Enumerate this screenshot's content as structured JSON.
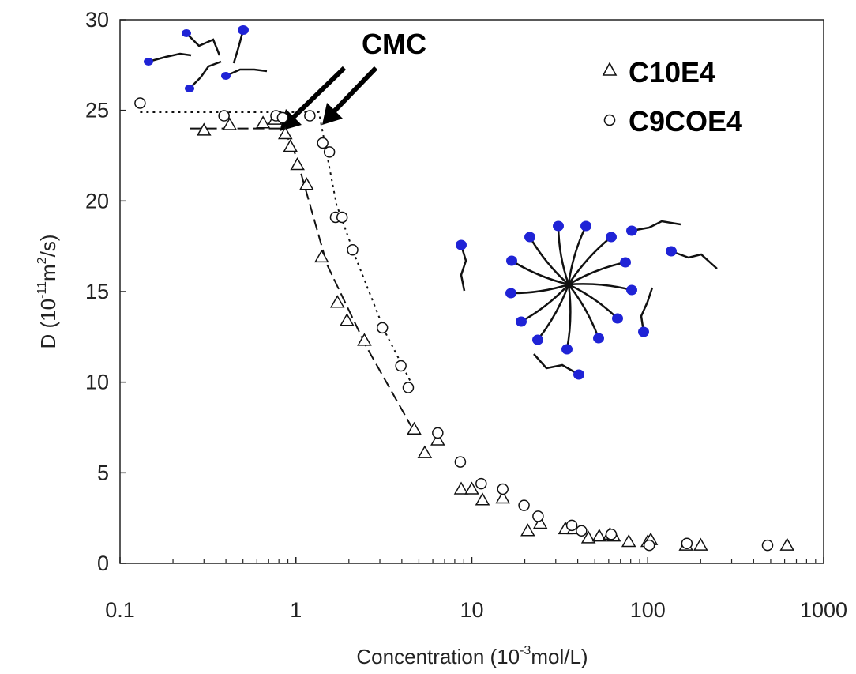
{
  "chart_data": {
    "type": "scatter",
    "title": "",
    "xlabel": {
      "prefix": "Concentration (10",
      "sup": "-3",
      "suffix": "mol/L)"
    },
    "ylabel": {
      "prefix": "D (10",
      "sup": "-11",
      "mid": "m",
      "sup2": "2",
      "suffix": "/s)"
    },
    "x_scale": "log",
    "xlim": [
      0.1,
      1000
    ],
    "ylim": [
      0,
      30
    ],
    "x_ticks": [
      0.1,
      1,
      10,
      100,
      1000
    ],
    "x_tick_labels": [
      "0.1",
      "1",
      "10",
      "100",
      "1000"
    ],
    "y_ticks": [
      0,
      5,
      10,
      15,
      20,
      25,
      30
    ],
    "y_tick_labels": [
      "0",
      "5",
      "10",
      "15",
      "20",
      "25",
      "30"
    ],
    "grid": false,
    "legend_position": "top-right",
    "annotations": [
      "CMC"
    ],
    "series": [
      {
        "name": "C10E4",
        "marker": "triangle",
        "points": [
          [
            0.3,
            23.9
          ],
          [
            0.42,
            24.2
          ],
          [
            0.65,
            24.3
          ],
          [
            0.76,
            24.5
          ],
          [
            0.87,
            23.7
          ],
          [
            0.93,
            23.0
          ],
          [
            1.02,
            22.0
          ],
          [
            1.15,
            20.9
          ],
          [
            1.4,
            16.9
          ],
          [
            1.72,
            14.4
          ],
          [
            1.95,
            13.4
          ],
          [
            2.45,
            12.3
          ],
          [
            4.7,
            7.4
          ],
          [
            5.4,
            6.1
          ],
          [
            6.4,
            6.8
          ],
          [
            8.7,
            4.1
          ],
          [
            10.0,
            4.1
          ],
          [
            11.5,
            3.5
          ],
          [
            15.0,
            3.6
          ],
          [
            20.8,
            1.8
          ],
          [
            24.5,
            2.2
          ],
          [
            34.0,
            1.9
          ],
          [
            38.0,
            1.9
          ],
          [
            46.0,
            1.4
          ],
          [
            53.0,
            1.5
          ],
          [
            61.0,
            1.6
          ],
          [
            64.0,
            1.5
          ],
          [
            78.0,
            1.2
          ],
          [
            100.0,
            1.2
          ],
          [
            104.0,
            1.3
          ],
          [
            165.0,
            1.0
          ],
          [
            200.0,
            1.0
          ],
          [
            620.0,
            1.0
          ]
        ]
      },
      {
        "name": "C9COE4",
        "marker": "circle",
        "points": [
          [
            0.13,
            25.4
          ],
          [
            0.39,
            24.7
          ],
          [
            0.77,
            24.7
          ],
          [
            0.84,
            24.6
          ],
          [
            1.2,
            24.7
          ],
          [
            1.42,
            23.2
          ],
          [
            1.55,
            22.7
          ],
          [
            1.68,
            19.1
          ],
          [
            1.83,
            19.1
          ],
          [
            2.1,
            17.3
          ],
          [
            3.1,
            13.0
          ],
          [
            3.95,
            10.9
          ],
          [
            4.35,
            9.7
          ],
          [
            6.4,
            7.2
          ],
          [
            8.6,
            5.6
          ],
          [
            11.3,
            4.4
          ],
          [
            15.0,
            4.1
          ],
          [
            19.8,
            3.2
          ],
          [
            23.8,
            2.6
          ],
          [
            37.0,
            2.1
          ],
          [
            42.0,
            1.8
          ],
          [
            62.0,
            1.6
          ],
          [
            102.0,
            1.0
          ],
          [
            167.0,
            1.1
          ],
          [
            480.0,
            1.0
          ]
        ]
      }
    ],
    "guide_lines": [
      {
        "for": "C10E4",
        "style": "long-dash",
        "points": [
          [
            0.25,
            24.0
          ],
          [
            0.85,
            24.0
          ],
          [
            1.0,
            22.5
          ],
          [
            1.5,
            16.5
          ],
          [
            2.5,
            12.0
          ],
          [
            4.5,
            7.6
          ]
        ]
      },
      {
        "for": "C9COE4",
        "style": "dotted",
        "points": [
          [
            0.13,
            24.9
          ],
          [
            1.35,
            24.9
          ],
          [
            1.7,
            19.8
          ],
          [
            2.2,
            16.8
          ],
          [
            3.2,
            12.8
          ],
          [
            4.5,
            10.0
          ]
        ]
      }
    ]
  },
  "colors": {
    "headgroup": "#1f23d6",
    "tail": "#111111",
    "axis": "#222222"
  }
}
